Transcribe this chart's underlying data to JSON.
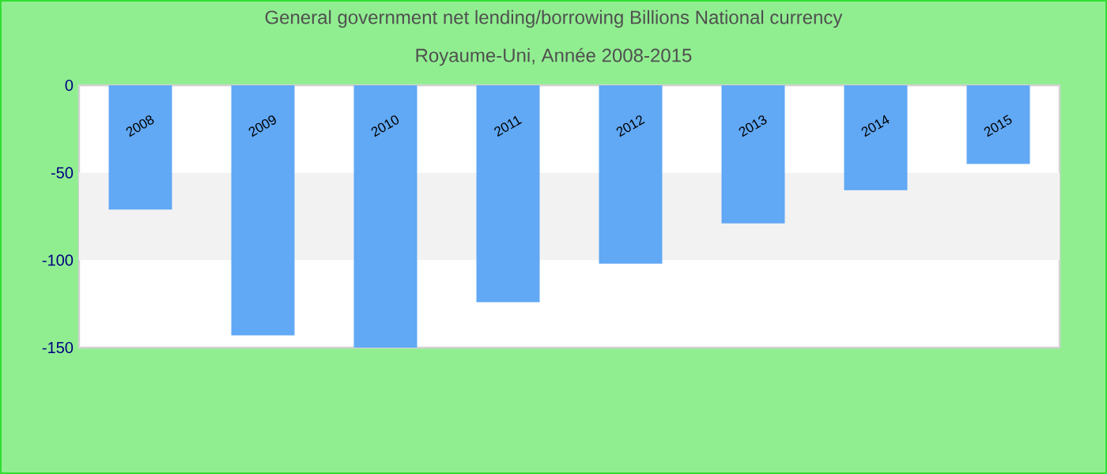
{
  "chart_data": {
    "type": "bar",
    "title": "General government net lending/borrowing Billions National currency",
    "subtitle": "Royaume-Uni, Année 2008-2015",
    "categories": [
      "2008",
      "2009",
      "2010",
      "2011",
      "2012",
      "2013",
      "2014",
      "2015"
    ],
    "values": [
      -71,
      -143,
      -150,
      -124,
      -102,
      -79,
      -60,
      -45
    ],
    "color": "#61a8f5",
    "ylim": [
      -150,
      0
    ],
    "yticks": [
      -150,
      -100,
      -50,
      0
    ],
    "bands": [
      {
        "axis": "y",
        "from": -100,
        "to": -50,
        "color": "#f2f2f2"
      }
    ],
    "grid": false
  }
}
